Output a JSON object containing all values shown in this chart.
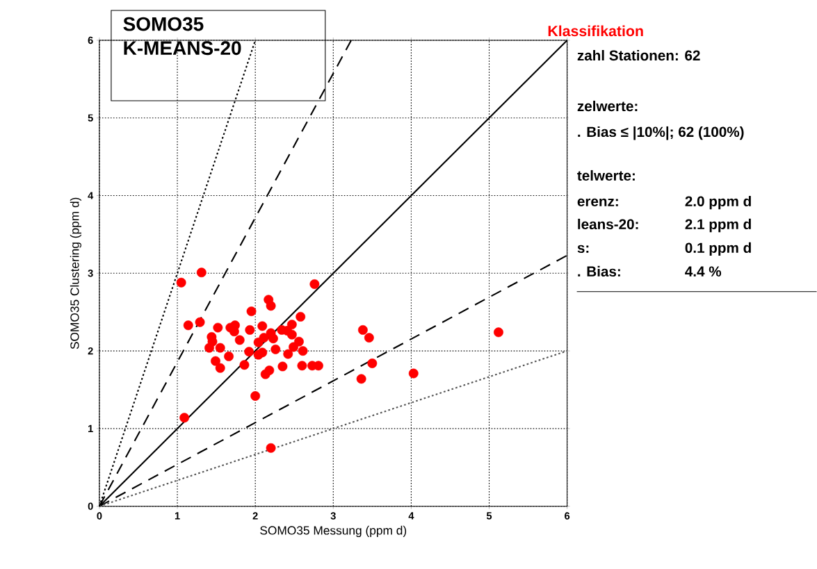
{
  "chart_data": {
    "type": "scatter",
    "title": "SOMO35",
    "subtitle": "K-MEANS-20",
    "xlabel": "SOMO35 Messung (ppm d)",
    "ylabel": "SOMO35 Clustering (ppm d)",
    "xlim": [
      0,
      6
    ],
    "ylim": [
      0,
      6
    ],
    "xticks": [
      0,
      1,
      2,
      3,
      4,
      5,
      6
    ],
    "yticks": [
      0,
      1,
      2,
      3,
      4,
      5,
      6
    ],
    "grid": true,
    "marker": "circle",
    "series": [
      {
        "color": "#ff0000",
        "x": [
          1.31,
          1.05,
          2.76,
          2.17,
          2.2,
          1.95,
          2.58,
          2.47,
          1.14,
          1.29,
          1.52,
          1.68,
          1.74,
          1.73,
          1.93,
          2.09,
          2.34,
          2.41,
          2.2,
          2.47,
          2.23,
          2.11,
          1.44,
          1.45,
          2.56,
          1.8,
          2.04,
          1.41,
          1.55,
          2.49,
          1.92,
          2.26,
          2.04,
          2.09,
          2.61,
          2.42,
          1.66,
          1.49,
          1.55,
          1.86,
          2.35,
          2.6,
          2.73,
          2.81,
          2.18,
          2.13,
          2.0,
          1.09,
          3.38,
          3.46,
          3.5,
          3.36,
          4.03,
          5.12,
          2.2
        ],
        "values": [
          3.01,
          2.88,
          2.86,
          2.66,
          2.58,
          2.51,
          2.44,
          2.34,
          2.33,
          2.37,
          2.3,
          2.3,
          2.33,
          2.25,
          2.27,
          2.32,
          2.27,
          2.26,
          2.23,
          2.21,
          2.16,
          2.17,
          2.18,
          2.12,
          2.12,
          2.14,
          2.11,
          2.04,
          2.04,
          2.05,
          1.99,
          2.02,
          1.95,
          1.98,
          2.0,
          1.96,
          1.93,
          1.87,
          1.78,
          1.82,
          1.8,
          1.81,
          1.81,
          1.81,
          1.75,
          1.7,
          1.42,
          1.14,
          2.27,
          2.17,
          1.84,
          1.64,
          1.71,
          2.24,
          0.75
        ]
      },
      {
        "type": "line",
        "color": "#000000",
        "line_style": "solid",
        "marker": "none",
        "x": [
          0,
          6
        ],
        "values": [
          0,
          6
        ]
      },
      {
        "type": "line",
        "color": "#000000",
        "line_style": "dashed",
        "marker": "none",
        "x": [
          0,
          6
        ],
        "values": [
          0,
          3.23
        ]
      },
      {
        "type": "line",
        "color": "#000000",
        "line_style": "dashed",
        "marker": "none",
        "x": [
          0,
          3.23
        ],
        "values": [
          0,
          6
        ]
      },
      {
        "type": "line",
        "color": "#555555",
        "line_style": "dotted",
        "marker": "none",
        "x": [
          0,
          6
        ],
        "values": [
          0,
          2
        ]
      },
      {
        "type": "line",
        "color": "#000000",
        "line_style": "dotted",
        "marker": "none",
        "x": [
          0,
          2
        ],
        "values": [
          0,
          6
        ]
      }
    ],
    "annotations": [
      "Klassifikation",
      "zahl Stationen: 62",
      "zelwerte:",
      ". Bias ≤ |10%|; 62 (100%)",
      "telwerte:",
      "erenz:",
      "2.0 ppm d",
      "leans-20:",
      "2.1 ppm d",
      "s:",
      "0.1 ppm d",
      ". Bias:",
      "4.4 %"
    ]
  }
}
